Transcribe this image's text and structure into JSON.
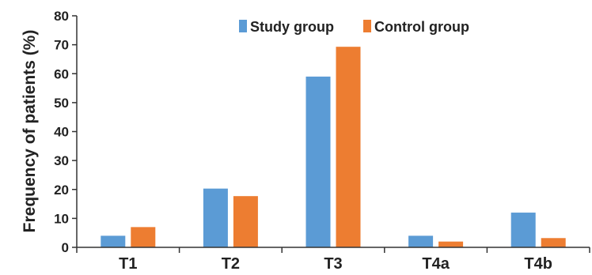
{
  "chart_data": {
    "type": "bar",
    "title": "",
    "xlabel": "",
    "ylabel": "Frequency of patients (%)",
    "categories": [
      "T1",
      "T2",
      "T3",
      "T4a",
      "T4b"
    ],
    "series": [
      {
        "name": "Study group",
        "color": "#5b9bd5",
        "values": [
          4,
          20.3,
          59,
          4,
          12
        ]
      },
      {
        "name": "Control group",
        "color": "#ed7d31",
        "values": [
          7,
          17.7,
          69.3,
          2,
          3.2
        ]
      }
    ],
    "ylim": [
      0,
      80
    ],
    "yticks": [
      0,
      10,
      20,
      30,
      40,
      50,
      60,
      70,
      80
    ],
    "grid": false,
    "legend_position": "top-center"
  }
}
